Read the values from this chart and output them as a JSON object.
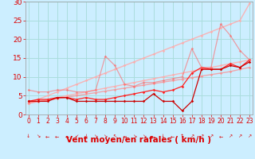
{
  "xlabel": "Vent moyen/en rafales ( km/h )",
  "background_color": "#cceeff",
  "grid_color": "#aadddd",
  "x_values": [
    0,
    1,
    2,
    3,
    4,
    5,
    6,
    7,
    8,
    9,
    10,
    11,
    12,
    13,
    14,
    15,
    16,
    17,
    18,
    19,
    20,
    21,
    22,
    23
  ],
  "series": [
    {
      "comment": "light pink upper diagonal reference line",
      "color": "#ffaaaa",
      "alpha": 0.85,
      "lw": 1.0,
      "y": [
        3.0,
        4.0,
        5.0,
        6.0,
        7.0,
        8.0,
        9.0,
        10.0,
        11.0,
        12.0,
        13.0,
        14.0,
        15.0,
        16.0,
        17.0,
        18.0,
        19.0,
        20.0,
        21.0,
        22.0,
        23.0,
        24.0,
        25.0,
        29.5
      ]
    },
    {
      "comment": "light pink lower diagonal reference line",
      "color": "#ffaaaa",
      "alpha": 0.85,
      "lw": 1.0,
      "y": [
        3.0,
        3.5,
        4.0,
        4.5,
        5.0,
        5.5,
        6.0,
        6.5,
        7.0,
        7.5,
        8.0,
        8.5,
        9.0,
        9.5,
        10.0,
        10.5,
        11.0,
        11.5,
        12.0,
        12.5,
        13.0,
        13.5,
        14.0,
        14.5
      ]
    },
    {
      "comment": "medium pink diagonal",
      "color": "#ff8888",
      "alpha": 0.7,
      "lw": 1.0,
      "y": [
        3.0,
        3.4,
        3.8,
        4.2,
        4.6,
        5.0,
        5.4,
        5.8,
        6.2,
        6.6,
        7.0,
        7.4,
        7.8,
        8.2,
        8.6,
        9.0,
        9.4,
        9.8,
        10.2,
        10.6,
        11.0,
        11.4,
        12.0,
        12.5
      ]
    },
    {
      "comment": "red irregular line - bumpy data",
      "color": "#ff2222",
      "alpha": 1.0,
      "lw": 0.9,
      "y": [
        3.5,
        4.0,
        4.0,
        4.5,
        4.5,
        4.0,
        4.5,
        4.0,
        4.0,
        4.5,
        5.0,
        5.5,
        6.0,
        6.5,
        6.0,
        6.5,
        7.5,
        11.0,
        12.5,
        12.0,
        12.0,
        13.5,
        12.5,
        14.5
      ]
    },
    {
      "comment": "dark red bumpy flat line",
      "color": "#cc0000",
      "alpha": 1.0,
      "lw": 0.9,
      "y": [
        3.5,
        3.5,
        3.5,
        4.5,
        4.5,
        3.5,
        3.5,
        3.5,
        3.5,
        3.5,
        3.5,
        3.5,
        3.5,
        5.5,
        3.5,
        3.5,
        1.0,
        3.5,
        12.0,
        12.0,
        12.0,
        13.0,
        12.5,
        14.0
      ]
    },
    {
      "comment": "pink spikey line - outlier spikes",
      "color": "#ff6666",
      "alpha": 0.6,
      "lw": 0.9,
      "y": [
        6.5,
        6.0,
        6.0,
        6.5,
        6.5,
        6.0,
        6.0,
        6.5,
        15.5,
        13.0,
        8.0,
        7.5,
        8.5,
        8.5,
        9.0,
        9.5,
        10.0,
        17.5,
        12.5,
        12.5,
        24.0,
        21.0,
        17.0,
        14.5
      ]
    }
  ],
  "wind_symbols": [
    "↓",
    "↘",
    "←",
    "←",
    "←",
    "↙",
    "↓",
    "↘",
    "↘",
    "↖",
    "→",
    "↘",
    "↘",
    "←",
    "↓",
    "←",
    "↑",
    "↗",
    "↗",
    "↗",
    "←",
    "↗",
    "↗",
    "↗"
  ],
  "ylim": [
    0,
    30
  ],
  "yticks": [
    0,
    5,
    10,
    15,
    20,
    25,
    30
  ],
  "xlim": [
    -0.3,
    23.3
  ],
  "xticks": [
    0,
    1,
    2,
    3,
    4,
    5,
    6,
    7,
    8,
    9,
    10,
    11,
    12,
    13,
    14,
    15,
    16,
    17,
    18,
    19,
    20,
    21,
    22,
    23
  ],
  "tick_color": "#dd0000",
  "label_color": "#dd0000",
  "xlabel_fontsize": 7.5,
  "ytick_fontsize": 6.5,
  "xtick_fontsize": 5.5
}
